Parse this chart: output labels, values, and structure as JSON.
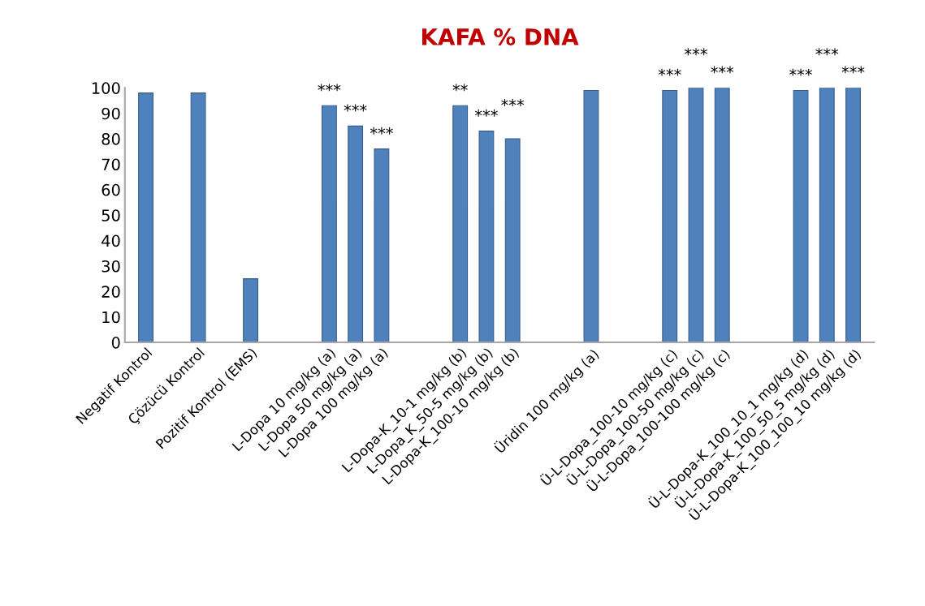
{
  "chart_data": {
    "type": "bar",
    "title": "KAFA % DNA",
    "categories": [
      "Negatif Kontrol",
      null,
      "Çözücü Kontrol",
      null,
      "Pozitif Kontrol (EMS)",
      null,
      null,
      "L-Dopa 10 mg/kg (a)",
      "L-Dopa 50 mg/kg (a)",
      "L-Dopa 100 mg/kg (a)",
      null,
      null,
      "L-Dopa-K_10-1 mg/kg (b)",
      "L-Dopa_K_50-5 mg/kg (b)",
      "L-Dopa-K_100-10 mg/kg (b)",
      null,
      null,
      "Üridin 100 mg/kg (a)",
      null,
      null,
      "Ü-L-Dopa_100-10 mg/kg (c)",
      "Ü-L-Dopa_100-50 mg/kg (c)",
      "Ü-L-Dopa_100-100 mg/kg (c)",
      null,
      null,
      "Ü-L-Dopa-K_100_10_1 mg/kg (d)",
      "Ü-L-Dopa-K_100_50_5 mg/kg (d)",
      "Ü-L-Dopa-K_100_100_10 mg/kg (d)"
    ],
    "values": [
      98,
      null,
      98,
      null,
      25,
      null,
      null,
      93,
      85,
      76,
      null,
      null,
      93,
      83,
      80,
      null,
      null,
      99,
      null,
      null,
      99,
      100,
      100,
      null,
      null,
      99,
      100,
      100
    ],
    "color": "#4f81bd",
    "ylim": [
      0,
      100
    ],
    "yticks": [
      0,
      10,
      20,
      30,
      40,
      50,
      60,
      70,
      80,
      90,
      100
    ],
    "grid": false,
    "annotations": [
      {
        "text": "***",
        "x": "L-Dopa 10 mg/kg (a)",
        "y": 93
      },
      {
        "text": "***",
        "x": "L-Dopa 50 mg/kg (a)",
        "y": 85
      },
      {
        "text": "***",
        "x": "L-Dopa 100 mg/kg (a)",
        "y": 76
      },
      {
        "text": "**",
        "x": "L-Dopa-K_10-1 mg/kg (b)",
        "y": 93
      },
      {
        "text": "***",
        "x": "L-Dopa_K_50-5 mg/kg (b)",
        "y": 83
      },
      {
        "text": "***",
        "x": "L-Dopa-K_100-10 mg/kg (b)",
        "y": 80
      },
      {
        "text": "***",
        "x": "Ü-L-Dopa_100-10 mg/kg (c)",
        "y": 99
      },
      {
        "text": "***",
        "x": "Ü-L-Dopa_100-50 mg/kg (c)",
        "y": 100
      },
      {
        "text": "***",
        "x": "Ü-L-Dopa_100-100 mg/kg (c)",
        "y": 100
      },
      {
        "text": "***",
        "x": "Ü-L-Dopa-K_100_10_1 mg/kg (d)",
        "y": 99
      },
      {
        "text": "***",
        "x": "Ü-L-Dopa-K_100_50_5 mg/kg (d)",
        "y": 100
      },
      {
        "text": "***",
        "x": "Ü-L-Dopa-K_100_100_10 mg/kg (d)",
        "y": 100
      }
    ]
  }
}
